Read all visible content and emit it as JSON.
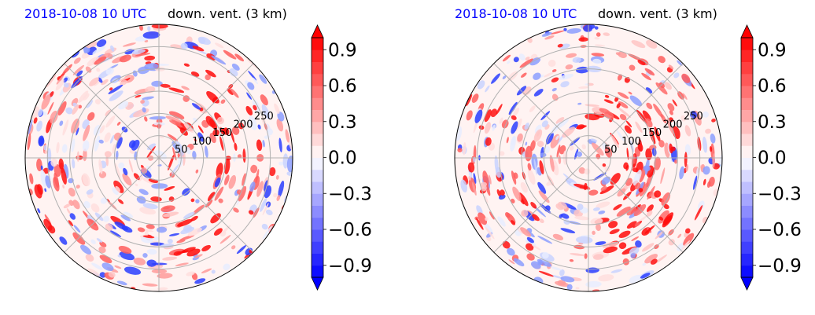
{
  "panels": [
    {
      "date_title": "2018-10-08 10 UTC",
      "var_title": "down. vent. (3 km)"
    },
    {
      "date_title": "2018-10-08 10 UTC",
      "var_title": "down. vent. (3 km)"
    }
  ],
  "chart_data": [
    {
      "type": "heatmap",
      "projection": "polar",
      "title_left": "2018-10-08 10 UTC",
      "title_right": "down. vent. (3 km)",
      "radial_ticks": [
        50,
        100,
        150,
        200,
        250
      ],
      "colorbar": {
        "ticks": [
          -0.9,
          -0.6,
          -0.3,
          0.0,
          0.3,
          0.6,
          0.9
        ],
        "range": [
          -1.0,
          1.0
        ],
        "extend": "both",
        "cmap": "bwr"
      },
      "grid": true
    },
    {
      "type": "heatmap",
      "projection": "polar",
      "title_left": "2018-10-08 10 UTC",
      "title_right": "down. vent. (3 km)",
      "radial_ticks": [
        50,
        100,
        150,
        200,
        250
      ],
      "colorbar": {
        "ticks": [
          -0.9,
          -0.6,
          -0.3,
          0.0,
          0.3,
          0.6,
          0.9
        ],
        "range": [
          -1.0,
          1.0
        ],
        "extend": "both",
        "cmap": "bwr"
      },
      "grid": true
    }
  ],
  "colors": {
    "red": "#ff0000",
    "blue": "#0000ff",
    "grid": "#b0b0b0",
    "date_title": "#0000ff"
  }
}
